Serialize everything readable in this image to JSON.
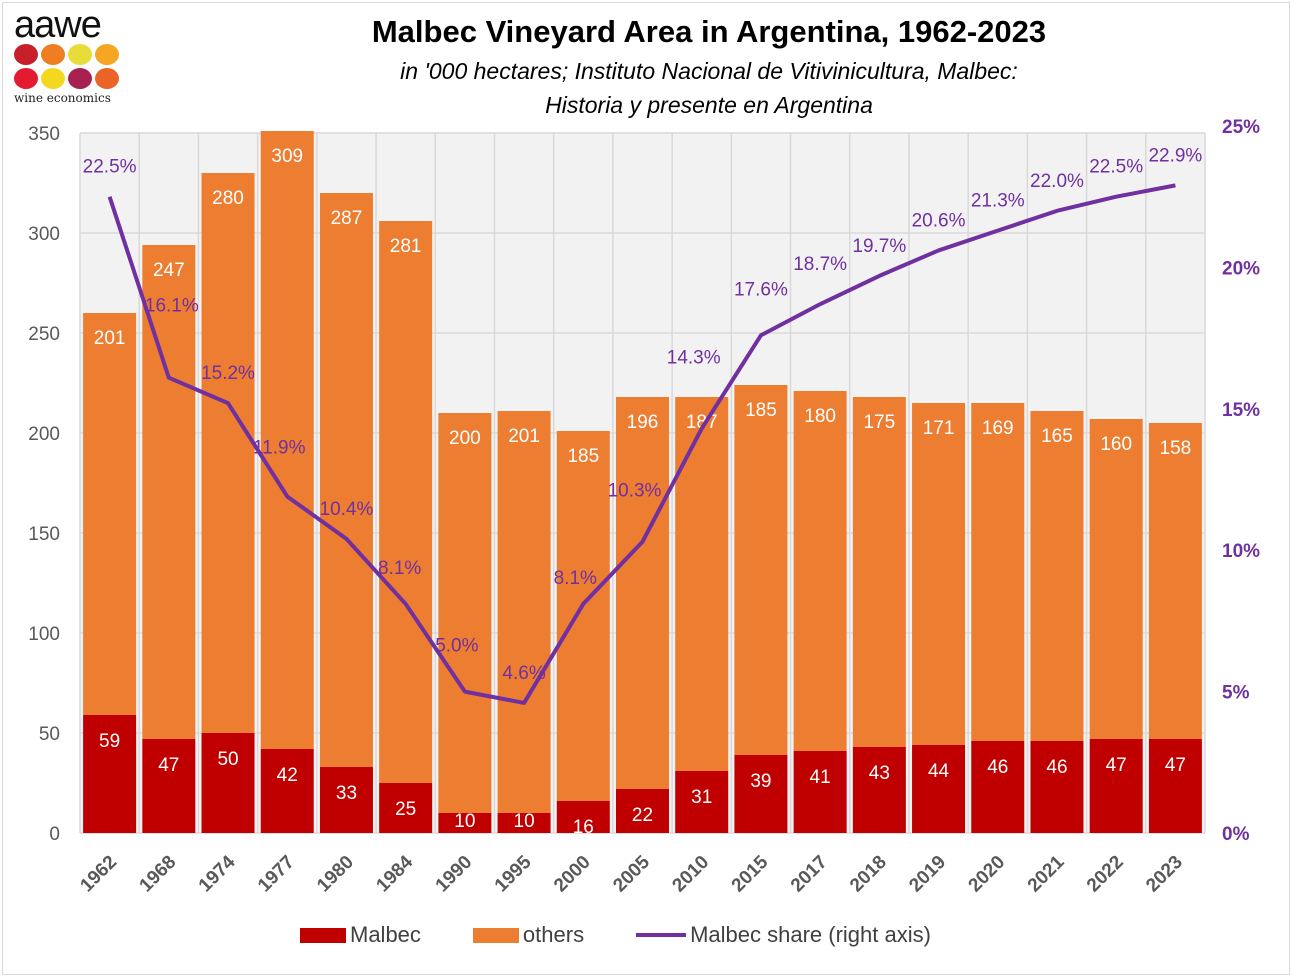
{
  "logo": {
    "text": "aawe",
    "subtext": "wine economics",
    "dot_colors": [
      "#c8202a",
      "#ef7d22",
      "#e8dc3a",
      "#f5a623",
      "#e31b30",
      "#f4d820",
      "#a8204f",
      "#ea6428"
    ]
  },
  "header": {
    "title": "Malbec Vineyard Area in Argentina, 1962-2023",
    "subtitle_line1": "in '000 hectares; Instituto Nacional de Vitivinicultura, Malbec:",
    "subtitle_line2": "Historia y presente en Argentina"
  },
  "chart_data": {
    "type": "bar",
    "stacked": true,
    "categories": [
      "1962",
      "1968",
      "1974",
      "1977",
      "1980",
      "1984",
      "1990",
      "1995",
      "2000",
      "2005",
      "2010",
      "2015",
      "2017",
      "2018",
      "2019",
      "2020",
      "2021",
      "2022",
      "2023"
    ],
    "series": [
      {
        "name": "Malbec",
        "color": "#c00000",
        "values": [
          59,
          47,
          50,
          42,
          33,
          25,
          10,
          10,
          16,
          22,
          31,
          39,
          41,
          43,
          44,
          46,
          46,
          47,
          47
        ]
      },
      {
        "name": "others",
        "color": "#ed7d31",
        "values": [
          201,
          247,
          280,
          309,
          287,
          281,
          200,
          201,
          185,
          196,
          187,
          185,
          180,
          175,
          171,
          169,
          165,
          160,
          158
        ]
      },
      {
        "name": "Malbec share (right axis)",
        "type": "line",
        "axis": "right",
        "color": "#7030a0",
        "values": [
          22.5,
          16.1,
          15.2,
          11.9,
          10.4,
          8.1,
          5.0,
          4.6,
          8.1,
          10.3,
          14.3,
          17.6,
          18.7,
          19.7,
          20.6,
          21.3,
          22.0,
          22.5,
          22.9
        ]
      }
    ],
    "ylim": [
      0,
      350
    ],
    "yticks": [
      "0",
      "50",
      "100",
      "150",
      "200",
      "250",
      "300",
      "350"
    ],
    "y2lim": [
      0,
      25
    ],
    "y2ticks": [
      "0%",
      "5%",
      "10%",
      "15%",
      "20%",
      "25%"
    ],
    "grid": true,
    "legend": "bottom"
  }
}
